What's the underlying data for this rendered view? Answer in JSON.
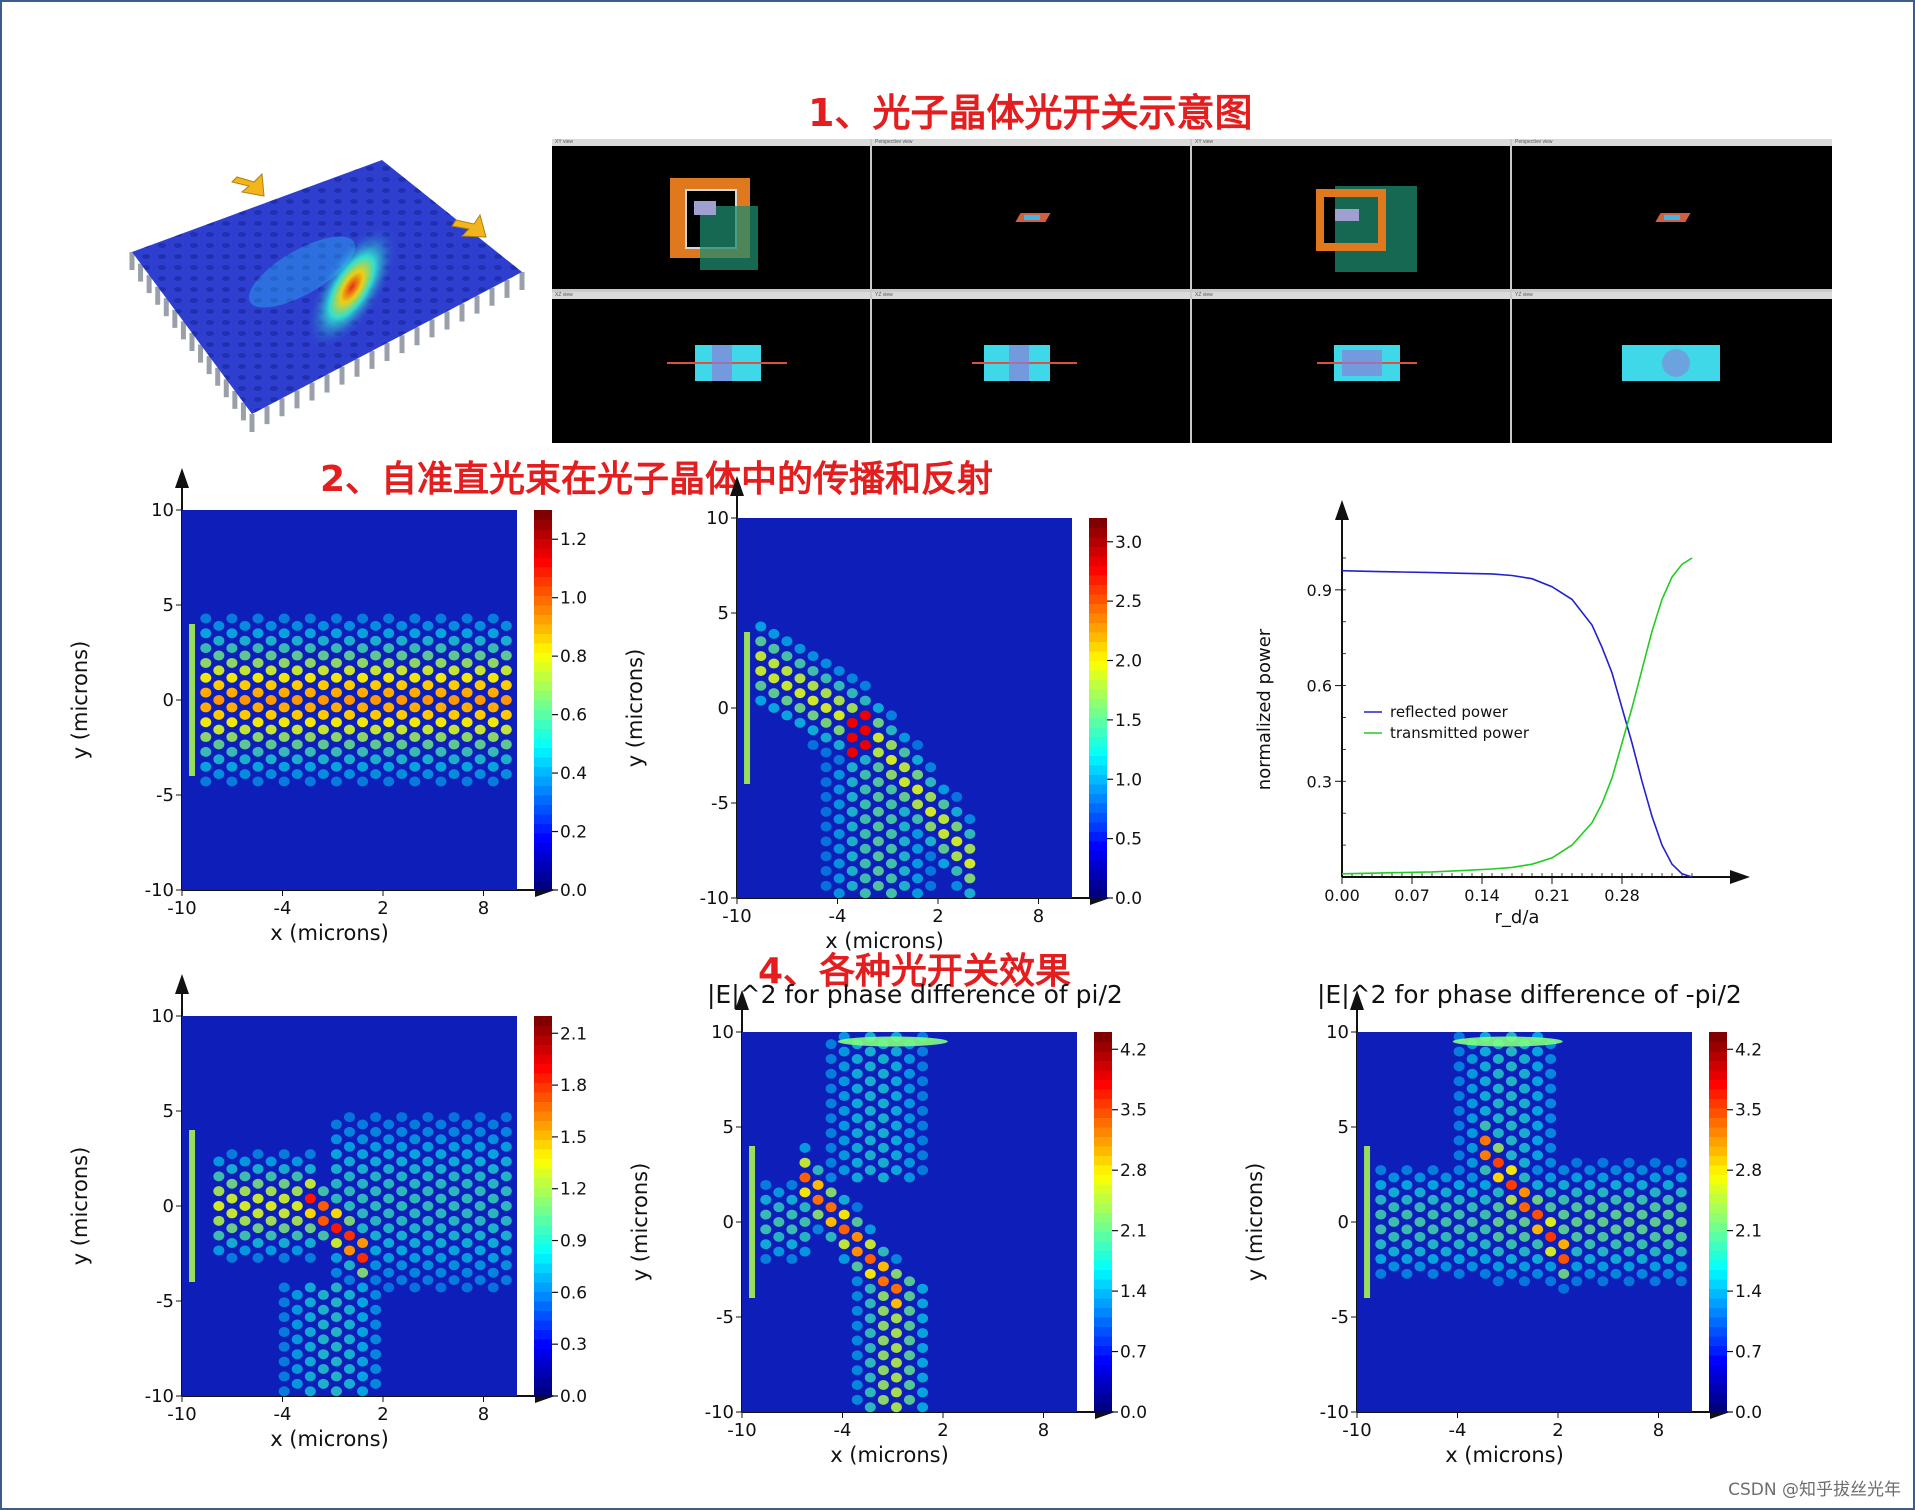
{
  "titles": {
    "s1": "1、光子晶体光开关示意图",
    "s2": "2、自准直光束在光子晶体中的传播和反射",
    "s4": "4、各种光开关效果"
  },
  "watermark": "CSDN @知乎拔丝光年",
  "schematic": {
    "arrow_color": "#f2b51d",
    "slab_color": "#2e3fcf"
  },
  "sim_views": {
    "top_row_labels": [
      "XY view",
      "Perspective view",
      "XY view",
      "Perspective view"
    ],
    "bottom_row_labels": [
      "XZ view",
      "YZ view",
      "XZ view",
      "YZ view"
    ]
  },
  "colors": {
    "title_red": "#e41e1e",
    "axis": "#111111",
    "reflected": "#2222cc",
    "transmitted": "#22cc22"
  },
  "chart_data": [
    {
      "id": "field1",
      "type": "heatmap",
      "xlabel": "x (microns)",
      "ylabel": "y (microns)",
      "xticks": [
        "-10",
        "-4",
        "2",
        "8"
      ],
      "yticks": [
        "10",
        "5",
        "0",
        "-5",
        "-10"
      ],
      "xlim": [
        -10,
        10
      ],
      "ylim": [
        -10,
        10
      ],
      "colorbar": {
        "min": 0,
        "max": 1.3,
        "ticks": [
          "0.0",
          "0.2",
          "0.4",
          "0.6",
          "0.8",
          "1.0",
          "1.2"
        ]
      },
      "pattern": "horizontal_beam"
    },
    {
      "id": "field2",
      "type": "heatmap",
      "xlabel": "x (microns)",
      "ylabel": "y (microns)",
      "xticks": [
        "-10",
        "-4",
        "2",
        "8"
      ],
      "yticks": [
        "10",
        "5",
        "0",
        "-5",
        "-10"
      ],
      "xlim": [
        -10,
        10
      ],
      "ylim": [
        -10,
        10
      ],
      "colorbar": {
        "min": 0,
        "max": 3.2,
        "ticks": [
          "0.0",
          "0.5",
          "1.0",
          "1.5",
          "2.0",
          "2.5",
          "3.0"
        ]
      },
      "pattern": "bent_beam"
    },
    {
      "id": "power",
      "type": "line",
      "xlabel": "r_d/a",
      "ylabel": "normalized power",
      "xticks": [
        "0.00",
        "0.07",
        "0.14",
        "0.21",
        "0.28"
      ],
      "yticks": [
        "0.9",
        "0.6",
        "0.3"
      ],
      "xlim": [
        0,
        0.37
      ],
      "ylim": [
        0,
        1.05
      ],
      "legend": {
        "position": "center-left",
        "entries": [
          "reflected power",
          "transmitted power"
        ]
      },
      "x": [
        0,
        0.03,
        0.06,
        0.09,
        0.12,
        0.15,
        0.17,
        0.19,
        0.21,
        0.23,
        0.25,
        0.26,
        0.27,
        0.28,
        0.29,
        0.3,
        0.31,
        0.32,
        0.33,
        0.34,
        0.35
      ],
      "series": [
        {
          "name": "reflected power",
          "values": [
            0.96,
            0.958,
            0.956,
            0.954,
            0.952,
            0.95,
            0.945,
            0.935,
            0.91,
            0.87,
            0.79,
            0.72,
            0.64,
            0.53,
            0.42,
            0.3,
            0.19,
            0.1,
            0.04,
            0.01,
            0.0
          ]
        },
        {
          "name": "transmitted power",
          "values": [
            0.01,
            0.012,
            0.014,
            0.016,
            0.02,
            0.025,
            0.03,
            0.04,
            0.06,
            0.1,
            0.17,
            0.23,
            0.31,
            0.42,
            0.53,
            0.65,
            0.77,
            0.87,
            0.94,
            0.98,
            1.0
          ]
        }
      ]
    },
    {
      "id": "field3",
      "type": "heatmap",
      "xlabel": "x (microns)",
      "ylabel": "y (microns)",
      "xticks": [
        "-10",
        "-4",
        "2",
        "8"
      ],
      "yticks": [
        "10",
        "5",
        "0",
        "-5",
        "-10"
      ],
      "xlim": [
        -10,
        10
      ],
      "ylim": [
        -10,
        10
      ],
      "colorbar": {
        "min": 0,
        "max": 2.2,
        "ticks": [
          "0.0",
          "0.3",
          "0.6",
          "0.9",
          "1.2",
          "1.5",
          "1.8",
          "2.1"
        ]
      },
      "pattern": "split_beam"
    },
    {
      "id": "field4",
      "type": "heatmap",
      "title": "|E|^2 for phase difference of pi/2",
      "xlabel": "x (microns)",
      "ylabel": "y (microns)",
      "xticks": [
        "-10",
        "-4",
        "2",
        "8"
      ],
      "yticks": [
        "10",
        "5",
        "0",
        "-5",
        "-10"
      ],
      "xlim": [
        -10,
        10
      ],
      "ylim": [
        -10,
        10
      ],
      "colorbar": {
        "min": 0,
        "max": 4.4,
        "ticks": [
          "0.0",
          "0.7",
          "1.4",
          "2.1",
          "2.8",
          "3.5",
          "4.2"
        ]
      },
      "pattern": "down_beam"
    },
    {
      "id": "field5",
      "type": "heatmap",
      "title": "|E|^2 for phase difference of -pi/2",
      "xlabel": "x (microns)",
      "ylabel": "y (microns)",
      "xticks": [
        "-10",
        "-4",
        "2",
        "8"
      ],
      "yticks": [
        "10",
        "5",
        "0",
        "-5",
        "-10"
      ],
      "xlim": [
        -10,
        10
      ],
      "ylim": [
        -10,
        10
      ],
      "colorbar": {
        "min": 0,
        "max": 4.4,
        "ticks": [
          "0.0",
          "0.7",
          "1.4",
          "2.1",
          "2.8",
          "3.5",
          "4.2"
        ]
      },
      "pattern": "right_beam"
    }
  ]
}
